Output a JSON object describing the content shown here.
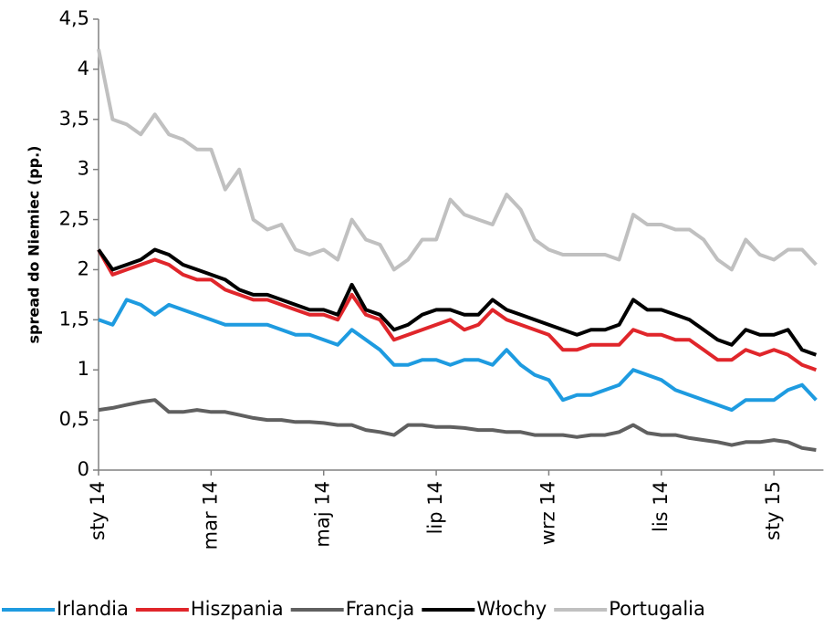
{
  "chart_data": {
    "type": "line",
    "y_label": "spread do Niemiec (pp.)",
    "categories": [
      "sty 14",
      null,
      null,
      null,
      null,
      null,
      null,
      null,
      "mar 14",
      null,
      null,
      null,
      null,
      null,
      null,
      null,
      "maj 14",
      null,
      null,
      null,
      null,
      null,
      null,
      null,
      "lip 14",
      null,
      null,
      null,
      null,
      null,
      null,
      null,
      "wrz 14",
      null,
      null,
      null,
      null,
      null,
      null,
      null,
      "lis 14",
      null,
      null,
      null,
      null,
      null,
      null,
      null,
      "sty 15",
      null,
      null,
      null
    ],
    "series": [
      {
        "name": "Irlandia",
        "color": "#1e9be0",
        "values": [
          1.5,
          1.45,
          1.7,
          1.65,
          1.55,
          1.65,
          1.6,
          1.55,
          1.5,
          1.45,
          1.45,
          1.45,
          1.45,
          1.4,
          1.35,
          1.35,
          1.3,
          1.25,
          1.4,
          1.3,
          1.2,
          1.05,
          1.05,
          1.1,
          1.1,
          1.05,
          1.1,
          1.1,
          1.05,
          1.2,
          1.05,
          0.95,
          0.9,
          0.7,
          0.75,
          0.75,
          0.8,
          0.85,
          1.0,
          0.95,
          0.9,
          0.8,
          0.75,
          0.7,
          0.65,
          0.6,
          0.7,
          0.7,
          0.7,
          0.8,
          0.85,
          0.7
        ]
      },
      {
        "name": "Hiszpania",
        "color": "#e0262b",
        "values": [
          2.2,
          1.95,
          2.0,
          2.05,
          2.1,
          2.05,
          1.95,
          1.9,
          1.9,
          1.8,
          1.75,
          1.7,
          1.7,
          1.65,
          1.6,
          1.55,
          1.55,
          1.5,
          1.75,
          1.55,
          1.5,
          1.3,
          1.35,
          1.4,
          1.45,
          1.5,
          1.4,
          1.45,
          1.6,
          1.5,
          1.45,
          1.4,
          1.35,
          1.2,
          1.2,
          1.25,
          1.25,
          1.25,
          1.4,
          1.35,
          1.35,
          1.3,
          1.3,
          1.2,
          1.1,
          1.1,
          1.2,
          1.15,
          1.2,
          1.15,
          1.05,
          1.0
        ]
      },
      {
        "name": "Francja",
        "color": "#606060",
        "values": [
          0.6,
          0.62,
          0.65,
          0.68,
          0.7,
          0.58,
          0.58,
          0.6,
          0.58,
          0.58,
          0.55,
          0.52,
          0.5,
          0.5,
          0.48,
          0.48,
          0.47,
          0.45,
          0.45,
          0.4,
          0.38,
          0.35,
          0.45,
          0.45,
          0.43,
          0.43,
          0.42,
          0.4,
          0.4,
          0.38,
          0.38,
          0.35,
          0.35,
          0.35,
          0.33,
          0.35,
          0.35,
          0.38,
          0.45,
          0.37,
          0.35,
          0.35,
          0.32,
          0.3,
          0.28,
          0.25,
          0.28,
          0.28,
          0.3,
          0.28,
          0.22,
          0.2
        ]
      },
      {
        "name": "Włochy",
        "color": "#000000",
        "values": [
          2.2,
          2.0,
          2.05,
          2.1,
          2.2,
          2.15,
          2.05,
          2.0,
          1.95,
          1.9,
          1.8,
          1.75,
          1.75,
          1.7,
          1.65,
          1.6,
          1.6,
          1.55,
          1.85,
          1.6,
          1.55,
          1.4,
          1.45,
          1.55,
          1.6,
          1.6,
          1.55,
          1.55,
          1.7,
          1.6,
          1.55,
          1.5,
          1.45,
          1.4,
          1.35,
          1.4,
          1.4,
          1.45,
          1.7,
          1.6,
          1.6,
          1.55,
          1.5,
          1.4,
          1.3,
          1.25,
          1.4,
          1.35,
          1.35,
          1.4,
          1.2,
          1.15
        ]
      },
      {
        "name": "Portugalia",
        "color": "#c0c0c0",
        "values": [
          4.2,
          3.5,
          3.45,
          3.35,
          3.55,
          3.35,
          3.3,
          3.2,
          3.2,
          2.8,
          3.0,
          2.5,
          2.4,
          2.45,
          2.2,
          2.15,
          2.2,
          2.1,
          2.5,
          2.3,
          2.25,
          2.0,
          2.1,
          2.3,
          2.3,
          2.7,
          2.55,
          2.5,
          2.45,
          2.75,
          2.6,
          2.3,
          2.2,
          2.15,
          2.15,
          2.15,
          2.15,
          2.1,
          2.55,
          2.45,
          2.45,
          2.4,
          2.4,
          2.3,
          2.1,
          2.0,
          2.3,
          2.15,
          2.1,
          2.2,
          2.2,
          2.05
        ]
      }
    ],
    "ylim": [
      0,
      4.5
    ],
    "yticks": [
      0,
      {
        "value": 0.5,
        "label": "0,5"
      },
      1,
      {
        "value": 1.5,
        "label": "1,5"
      },
      2,
      {
        "value": 2.5,
        "label": "2,5"
      },
      3,
      {
        "value": 3.5,
        "label": "3,5"
      },
      4,
      {
        "value": 4.5,
        "label": "4,5"
      }
    ],
    "legend": "bottom"
  }
}
